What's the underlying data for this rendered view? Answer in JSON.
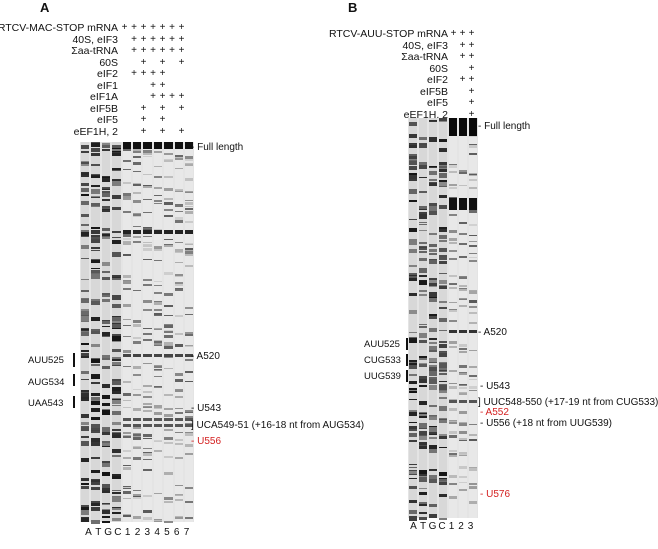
{
  "panelA": {
    "letter": "A",
    "conditions": [
      {
        "label": "RTCV-MAC-STOP mRNA",
        "signs": [
          "+",
          "+",
          "+",
          "+",
          "+",
          "+",
          "+"
        ]
      },
      {
        "label": "40S, eIF3",
        "signs": [
          "",
          "+",
          "+",
          "+",
          "+",
          "+",
          "+"
        ]
      },
      {
        "label": "Σaa-tRNA",
        "signs": [
          "",
          "+",
          "+",
          "+",
          "+",
          "+",
          "+"
        ]
      },
      {
        "label": "60S",
        "signs": [
          "",
          "",
          "+",
          "",
          "+",
          "",
          "+"
        ]
      },
      {
        "label": "eIF2",
        "signs": [
          "",
          "+",
          "+",
          "+",
          "+",
          "",
          ""
        ]
      },
      {
        "label": "eIF1",
        "signs": [
          "",
          "",
          "",
          "+",
          "+",
          "",
          ""
        ]
      },
      {
        "label": "eIF1A",
        "signs": [
          "",
          "",
          "",
          "+",
          "+",
          "+",
          "+"
        ]
      },
      {
        "label": "eIF5B",
        "signs": [
          "",
          "",
          "+",
          "",
          "+",
          "",
          "+"
        ]
      },
      {
        "label": "eIF5",
        "signs": [
          "",
          "",
          "+",
          "",
          "+",
          "",
          ""
        ]
      },
      {
        "label": "eEF1H, 2",
        "signs": [
          "",
          "",
          "+",
          "",
          "+",
          "",
          "+"
        ]
      }
    ],
    "left_markers": [
      "AUU525",
      "AUG534",
      "UAA543"
    ],
    "right_labels": [
      {
        "text": "- Full length",
        "color": "black"
      },
      {
        "text": "- A520",
        "color": "black"
      },
      {
        "text": "- U543",
        "color": "black"
      },
      {
        "text": "] UCA549-51 (+16-18 nt from AUG534)",
        "color": "black"
      },
      {
        "text": "- U556",
        "color": "red"
      }
    ],
    "lane_labels": [
      "A",
      "T",
      "G",
      "C",
      "1",
      "2",
      "3",
      "4",
      "5",
      "6",
      "7"
    ]
  },
  "panelB": {
    "letter": "B",
    "conditions": [
      {
        "label": "RTCV-AUU-STOP mRNA",
        "signs": [
          "+",
          "+",
          "+"
        ]
      },
      {
        "label": "40S, eIF3",
        "signs": [
          "",
          "+",
          "+"
        ]
      },
      {
        "label": "Σaa-tRNA",
        "signs": [
          "",
          "+",
          "+"
        ]
      },
      {
        "label": "60S",
        "signs": [
          "",
          "",
          "+"
        ]
      },
      {
        "label": "eIF2",
        "signs": [
          "",
          "+",
          "+"
        ]
      },
      {
        "label": "eIF5B",
        "signs": [
          "",
          "",
          "+"
        ]
      },
      {
        "label": "eIF5",
        "signs": [
          "",
          "",
          "+"
        ]
      },
      {
        "label": "eEF1H, 2",
        "signs": [
          "",
          "",
          "+"
        ]
      }
    ],
    "left_markers": [
      "AUU525",
      "CUG533",
      "UUG539"
    ],
    "right_labels": [
      {
        "text": "- Full length",
        "color": "black"
      },
      {
        "text": "- A520",
        "color": "black"
      },
      {
        "text": "- U543",
        "color": "black"
      },
      {
        "text": "] UUC548-550 (+17-19 nt from CUG533)",
        "color": "black"
      },
      {
        "text": "- A552",
        "color": "red"
      },
      {
        "text": "- U556 (+18 nt from UUG539)",
        "color": "black"
      },
      {
        "text": "- U576",
        "color": "red"
      }
    ],
    "lane_labels": [
      "A",
      "T",
      "G",
      "C",
      "1",
      "2",
      "3"
    ]
  }
}
